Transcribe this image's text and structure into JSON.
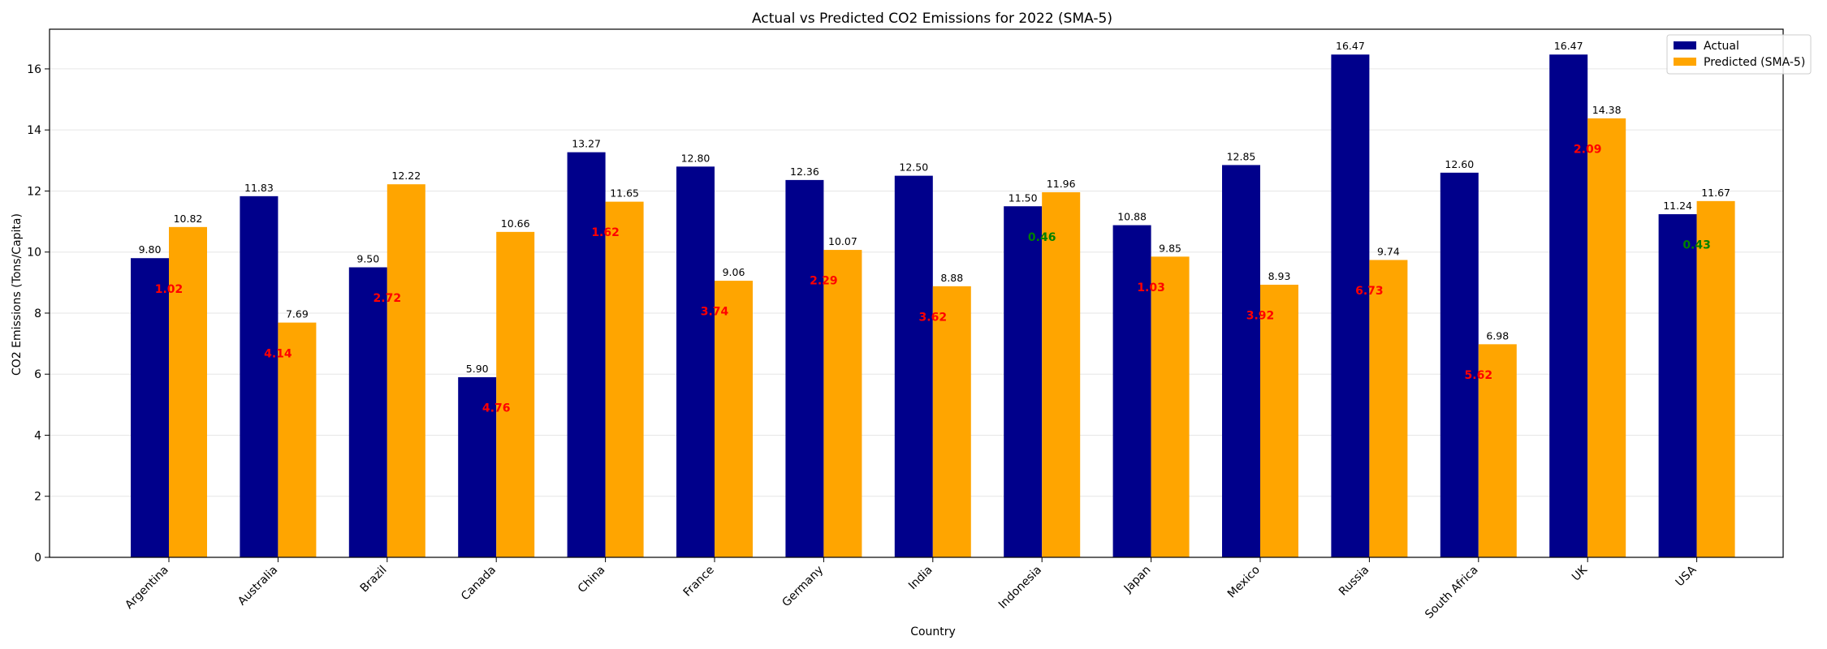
{
  "chart_data": {
    "type": "bar",
    "title": "Actual vs Predicted CO2 Emissions for 2022 (SMA-5)",
    "xlabel": "Country",
    "ylabel": "CO2 Emissions (Tons/Capita)",
    "ylim": [
      0,
      17.3
    ],
    "yticks": [
      "0",
      "2",
      "4",
      "6",
      "8",
      "10",
      "12",
      "14",
      "16"
    ],
    "grid": true,
    "legend_position": "top-right",
    "categories": [
      "Argentina",
      "Australia",
      "Brazil",
      "Canada",
      "China",
      "France",
      "Germany",
      "India",
      "Indonesia",
      "Japan",
      "Mexico",
      "Russia",
      "South Africa",
      "UK",
      "USA"
    ],
    "series": [
      {
        "name": "Actual",
        "color": "#00008b",
        "values": [
          9.8,
          11.83,
          9.5,
          5.9,
          13.27,
          12.8,
          12.36,
          12.5,
          11.5,
          10.88,
          12.85,
          16.47,
          12.6,
          16.47,
          11.24
        ],
        "labels": [
          "9.80",
          "11.83",
          "9.50",
          "5.90",
          "13.27",
          "12.80",
          "12.36",
          "12.50",
          "11.50",
          "10.88",
          "12.85",
          "16.47",
          "12.60",
          "16.47",
          "11.24"
        ]
      },
      {
        "name": "Predicted (SMA-5)",
        "color": "#ffa500",
        "values": [
          10.82,
          7.69,
          12.22,
          10.66,
          11.65,
          9.06,
          10.07,
          8.88,
          11.96,
          9.85,
          8.93,
          9.74,
          6.98,
          14.38,
          11.67
        ],
        "labels": [
          "10.82",
          "7.69",
          "12.22",
          "10.66",
          "11.65",
          "9.06",
          "10.07",
          "8.88",
          "11.96",
          "9.85",
          "8.93",
          "9.74",
          "6.98",
          "14.38",
          "11.67"
        ]
      }
    ],
    "differences": {
      "labels": [
        "1.02",
        "4.14",
        "2.72",
        "4.76",
        "1.62",
        "3.74",
        "2.29",
        "3.62",
        "0.46",
        "1.03",
        "3.92",
        "6.73",
        "5.62",
        "2.09",
        "0.43"
      ],
      "colors": [
        "#ff0000",
        "#ff0000",
        "#ff0000",
        "#ff0000",
        "#ff0000",
        "#ff0000",
        "#ff0000",
        "#ff0000",
        "#008000",
        "#ff0000",
        "#ff0000",
        "#ff0000",
        "#ff0000",
        "#ff0000",
        "#008000"
      ],
      "values": [
        1.02,
        4.14,
        2.72,
        4.76,
        1.62,
        3.74,
        2.29,
        3.62,
        0.46,
        1.03,
        3.92,
        6.73,
        5.62,
        2.09,
        0.43
      ]
    }
  }
}
